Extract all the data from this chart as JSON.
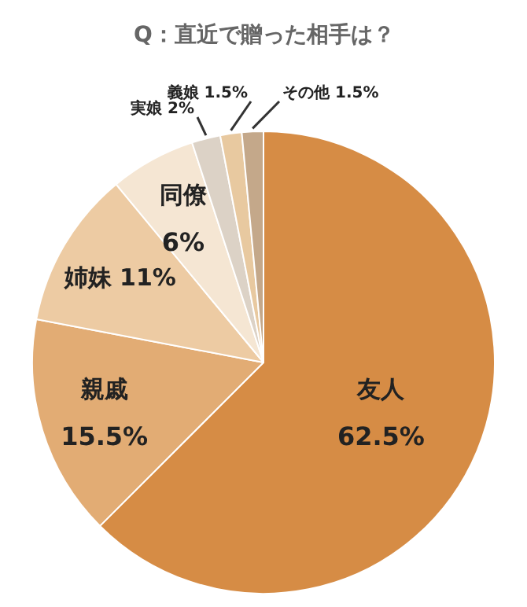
{
  "chart_data": {
    "type": "pie",
    "title": "Q：直近で贈った相手は？",
    "categories": [
      "友人",
      "親戚",
      "姉妹",
      "同僚",
      "実娘",
      "義娘",
      "その他"
    ],
    "values": [
      62.5,
      15.5,
      11,
      6,
      2,
      1.5,
      1.5
    ],
    "value_labels": [
      "62.5%",
      "15.5%",
      "11%",
      "6%",
      "2%",
      "1.5%",
      "1.5%"
    ],
    "colors": [
      "#d68c45",
      "#e2ac74",
      "#edcba3",
      "#f5e6d3",
      "#dcd2c6",
      "#e8c9a0",
      "#c4a88a"
    ]
  }
}
